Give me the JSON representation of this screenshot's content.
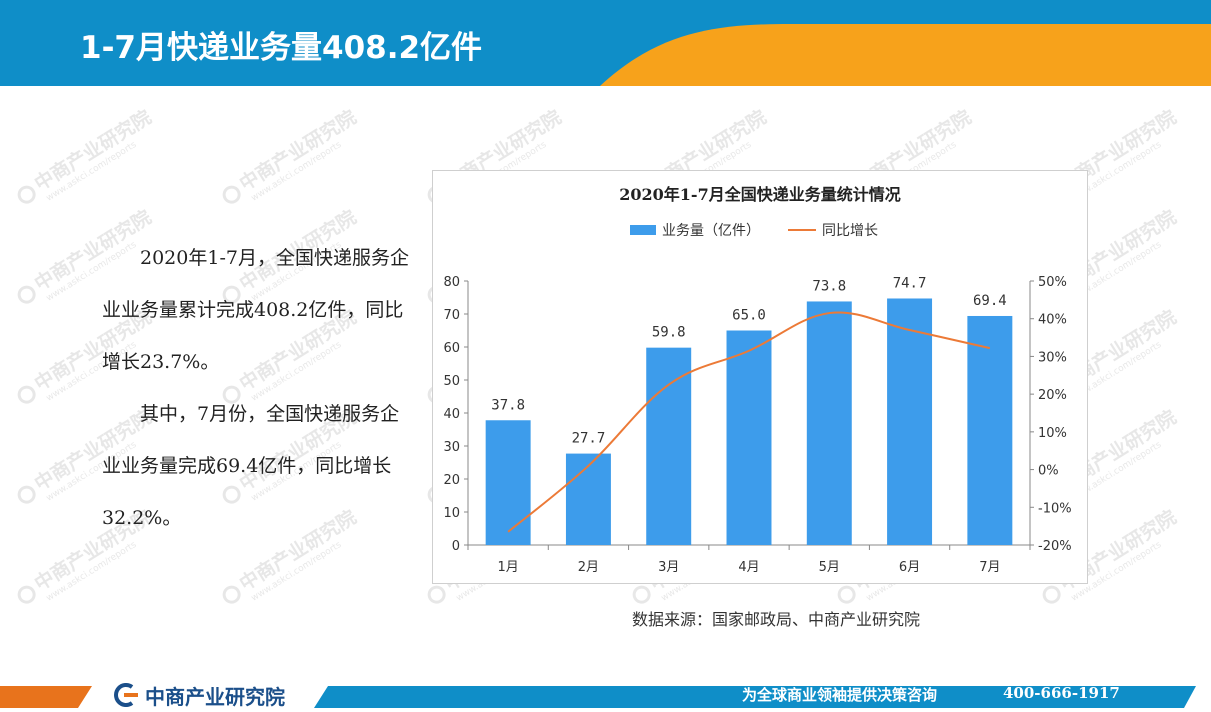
{
  "header": {
    "title": "1-7月快递业务量408.2亿件"
  },
  "summary": {
    "paragraph1": "2020年1-7月，全国快递服务企业业务量累计完成408.2亿件，同比增长23.7%。",
    "paragraph2": "其中，7月份，全国快递服务企业业务量完成69.4亿件，同比增长32.2%。"
  },
  "chart_data": {
    "type": "bar",
    "title": "2020年1-7月全国快递业务量统计情况",
    "categories": [
      "1月",
      "2月",
      "3月",
      "4月",
      "5月",
      "6月",
      "7月"
    ],
    "series": [
      {
        "name": "业务量（亿件）",
        "type": "bar",
        "axis": "left",
        "values": [
          37.8,
          27.7,
          59.8,
          65.0,
          73.8,
          74.7,
          69.4
        ],
        "data_labels": [
          "37.8",
          "27.7",
          "59.8",
          "65.0",
          "73.8",
          "74.7",
          "69.4"
        ]
      },
      {
        "name": "同比增长",
        "type": "line",
        "axis": "right",
        "values": [
          -16.5,
          1.0,
          22.5,
          31.5,
          41.5,
          37.0,
          32.2
        ]
      }
    ],
    "ylim": [
      0,
      80
    ],
    "y_ticks": [
      "0",
      "10",
      "20",
      "30",
      "40",
      "50",
      "60",
      "70",
      "80"
    ],
    "y2lim": [
      -20,
      50
    ],
    "y2_ticks": [
      "-20%",
      "-10%",
      "0%",
      "10%",
      "20%",
      "30%",
      "40%",
      "50%"
    ],
    "legend_position": "top-center",
    "grid": false,
    "colors": {
      "bar": "#3d9ceb",
      "line": "#ec7a37"
    }
  },
  "source_note": "数据来源：国家邮政局、中商产业研究院",
  "footer": {
    "brand": "中商产业研究院",
    "slogan": "为全球商业领袖提供决策咨询",
    "phone": "400-666-1917"
  },
  "watermark": {
    "text": "中商产业研究院",
    "subtext": "www.askci.com/reports"
  },
  "theme": {
    "primary_blue": "#0f8ec8",
    "accent_orange": "#f7a21b",
    "footer_orange": "#e8731c",
    "brand_blue": "#1b4f8a"
  }
}
